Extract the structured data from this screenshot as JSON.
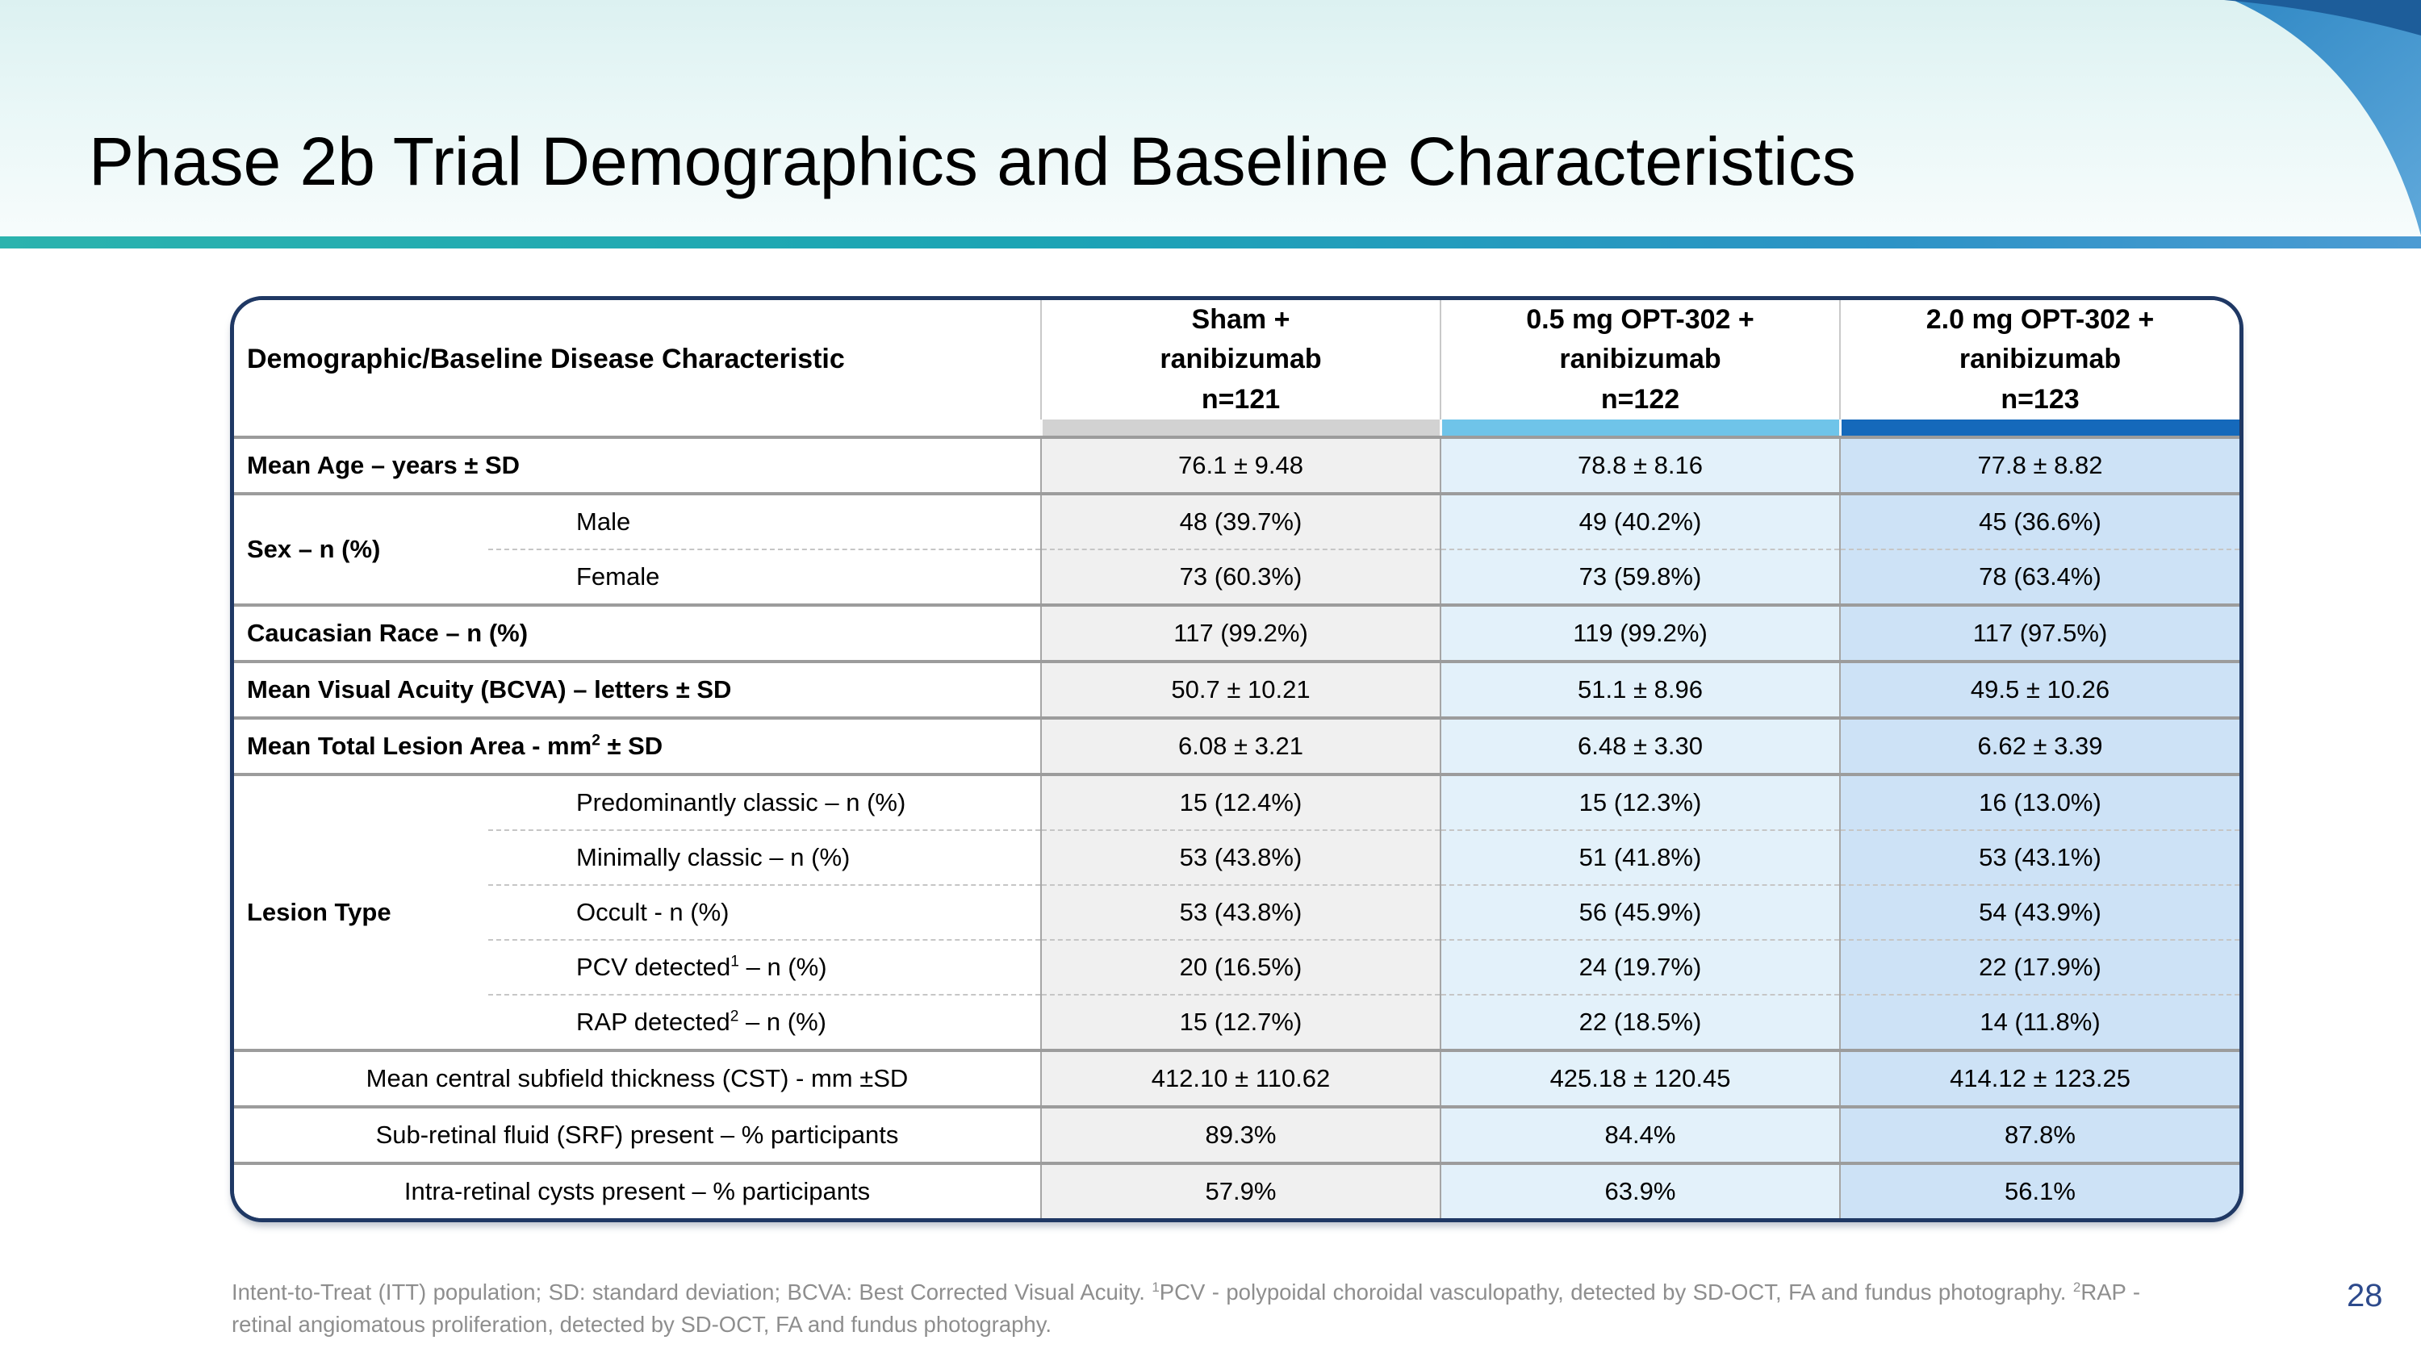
{
  "slide": {
    "title": "Phase 2b Trial Demographics and Baseline Characteristics",
    "page_number": "28"
  },
  "colors": {
    "title_bar_teal": "#2bb3ae",
    "title_bar_blue": "#4c9bd3",
    "corner_wedge_blue": "#3189c5",
    "corner_sliver_navy": "#1d5d9a",
    "table_border_navy": "#1f3864",
    "row_separator_gray": "#9c9c9c",
    "page_number_navy": "#2d4a8c",
    "footnote_gray": "#8e8e8e"
  },
  "table": {
    "header_label": "Demographic/Baseline Disease Characteristic",
    "columns": [
      {
        "title": "Sham +\nranibizumab\nn=121",
        "accent": "#d2d2d2",
        "cell_bg": "#f0f0f0"
      },
      {
        "title": "0.5 mg OPT-302 +\nranibizumab\nn=122",
        "accent": "#6fc4e9",
        "cell_bg": "#e3f1fa"
      },
      {
        "title": "2.0 mg OPT-302 +\nranibizumab\nn=123",
        "accent": "#1569bb",
        "cell_bg": "#cde2f6"
      }
    ],
    "rows": [
      {
        "kind": "single",
        "label": "Mean Age – years ± SD",
        "values": [
          "76.1 ± 9.48",
          "78.8 ± 8.16",
          "77.8 ± 8.82"
        ]
      },
      {
        "kind": "group",
        "label": "Sex – n (%)",
        "subrows": [
          {
            "label": "Male",
            "values": [
              "48 (39.7%)",
              "49 (40.2%)",
              "45 (36.6%)"
            ]
          },
          {
            "label": "Female",
            "values": [
              "73 (60.3%)",
              "73 (59.8%)",
              "78 (63.4%)"
            ]
          }
        ]
      },
      {
        "kind": "single",
        "label": "Caucasian Race – n (%)",
        "values": [
          "117 (99.2%)",
          "119 (99.2%)",
          "117 (97.5%)"
        ]
      },
      {
        "kind": "single",
        "label": "Mean Visual Acuity (BCVA) – letters ± SD",
        "values": [
          "50.7 ± 10.21",
          "51.1 ± 8.96",
          "49.5 ± 10.26"
        ]
      },
      {
        "kind": "single",
        "label": "Mean Total Lesion Area - mm^2^ ± SD",
        "values": [
          "6.08 ± 3.21",
          "6.48 ± 3.30",
          "6.62 ± 3.39"
        ]
      },
      {
        "kind": "group",
        "label": "Lesion Type",
        "subrows": [
          {
            "label": "Predominantly classic – n (%)",
            "values": [
              "15 (12.4%)",
              "15 (12.3%)",
              "16 (13.0%)"
            ]
          },
          {
            "label": "Minimally classic – n (%)",
            "values": [
              "53 (43.8%)",
              "51 (41.8%)",
              "53 (43.1%)"
            ]
          },
          {
            "label": "Occult - n (%)",
            "values": [
              "53 (43.8%)",
              "56 (45.9%)",
              "54 (43.9%)"
            ]
          },
          {
            "label": "PCV detected^1^ – n (%)",
            "values": [
              "20 (16.5%)",
              "24 (19.7%)",
              "22 (17.9%)"
            ]
          },
          {
            "label": "RAP detected^2^ – n (%)",
            "values": [
              "15 (12.7%)",
              "22 (18.5%)",
              "14 (11.8%)"
            ]
          }
        ]
      },
      {
        "kind": "centered",
        "label": "Mean central subfield thickness (CST) - mm ±SD",
        "values": [
          "412.10 ± 110.62",
          "425.18 ± 120.45",
          "414.12 ± 123.25"
        ]
      },
      {
        "kind": "centered",
        "label": "Sub-retinal fluid (SRF) present – % participants",
        "values": [
          "89.3%",
          "84.4%",
          "87.8%"
        ]
      },
      {
        "kind": "centered",
        "label": "Intra-retinal cysts present – % participants",
        "values": [
          "57.9%",
          "63.9%",
          "56.1%"
        ]
      }
    ]
  },
  "footnote": "Intent-to-Treat (ITT) population; SD: standard deviation; BCVA: Best Corrected Visual Acuity. ^1^PCV - polypoidal choroidal vasculopathy, detected by SD-OCT, FA and fundus photography. ^2^RAP - retinal angiomatous proliferation, detected by SD-OCT, FA and fundus photography."
}
